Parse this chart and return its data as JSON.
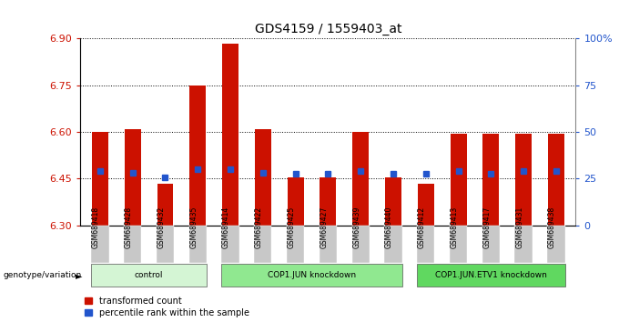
{
  "title": "GDS4159 / 1559403_at",
  "samples": [
    "GSM689418",
    "GSM689428",
    "GSM689432",
    "GSM689435",
    "GSM689414",
    "GSM689422",
    "GSM689425",
    "GSM689427",
    "GSM689439",
    "GSM689440",
    "GSM689412",
    "GSM689413",
    "GSM689417",
    "GSM689431",
    "GSM689438"
  ],
  "red_values": [
    6.6,
    6.61,
    6.435,
    6.75,
    6.885,
    6.61,
    6.455,
    6.455,
    6.6,
    6.455,
    6.435,
    6.595,
    6.595,
    6.595,
    6.595
  ],
  "blue_values": [
    6.475,
    6.47,
    6.455,
    6.48,
    6.48,
    6.47,
    6.465,
    6.465,
    6.475,
    6.465,
    6.465,
    6.475,
    6.465,
    6.475,
    6.475
  ],
  "groups": [
    {
      "label": "control",
      "start": 0,
      "end": 4,
      "color": "#d4f5d4"
    },
    {
      "label": "COP1.JUN knockdown",
      "start": 4,
      "end": 10,
      "color": "#90e890"
    },
    {
      "label": "COP1.JUN.ETV1 knockdown",
      "start": 10,
      "end": 15,
      "color": "#60d860"
    }
  ],
  "ylim_left": [
    6.3,
    6.9
  ],
  "ylim_right": [
    0,
    100
  ],
  "yticks_left": [
    6.3,
    6.45,
    6.6,
    6.75,
    6.9
  ],
  "yticks_right": [
    0,
    25,
    50,
    75,
    100
  ],
  "ytick_labels_right": [
    "0",
    "25",
    "50",
    "75",
    "100%"
  ],
  "bar_color": "#cc1100",
  "blue_color": "#2255cc",
  "bar_width": 0.5,
  "grid_color": "#000000",
  "bg_color": "#ffffff",
  "label_transformed": "transformed count",
  "label_percentile": "percentile rank within the sample",
  "ylabel_left_color": "#cc1100",
  "ylabel_right_color": "#2255cc",
  "sample_bg_color": "#c8c8c8"
}
